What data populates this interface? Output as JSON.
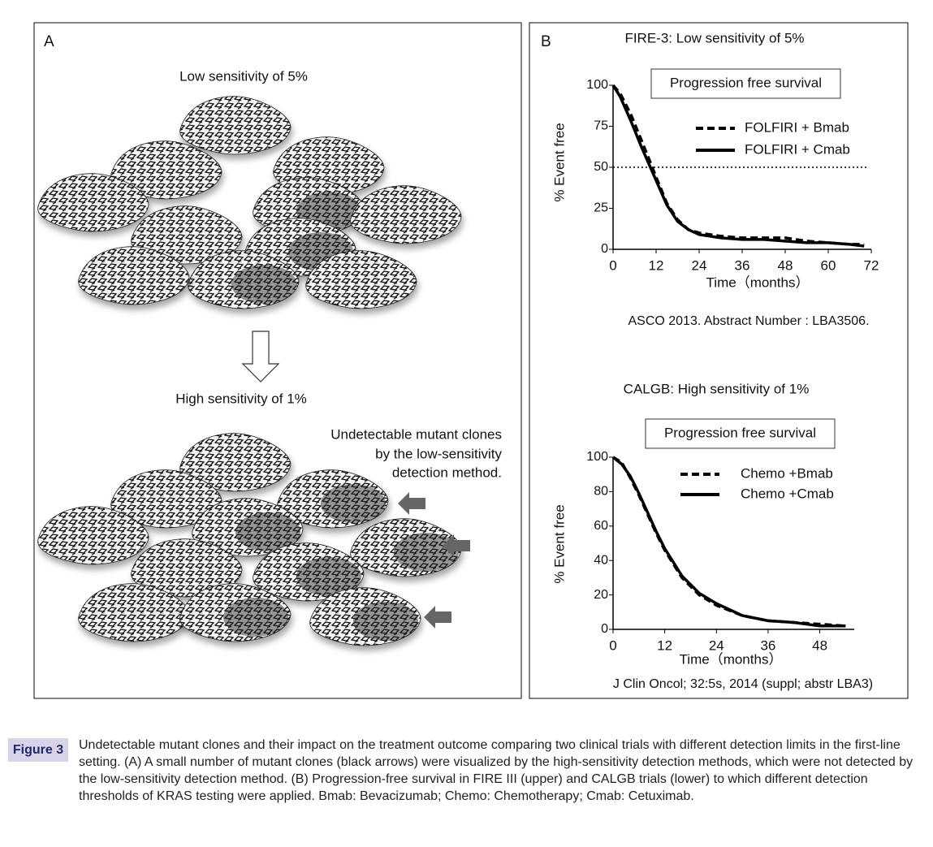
{
  "figure": {
    "panel_a": {
      "label": "A",
      "low_title": "Low sensitivity of 5%",
      "high_title": "High sensitivity of 1%",
      "note": [
        "Undetectable mutant clones",
        "by the low-sensitivity",
        "detection method."
      ]
    },
    "panel_b": {
      "label": "B"
    },
    "caption_label": "Figure 3",
    "caption": "Undetectable mutant clones and their impact on the treatment outcome comparing two clinical trials with different detection limits in the first-line setting. (A) A small number of mutant clones (black arrows) were visualized by the high-sensitivity detection methods, which were not detected by the low-sensitivity detection method. (B) Progression-free survival in FIRE III (upper) and CALGB trials (lower) to which different detection thresholds of KRAS testing were applied. Bmab: Bevacizumab; Chemo: Chemotherapy; Cmab: Cetuximab."
  },
  "chart_data": [
    {
      "type": "line",
      "title": "FIRE-3: Low sensitivity of 5%",
      "subtitle": "Progression free survival",
      "ylabel": "% Event free",
      "xlabel": "Time（months）",
      "source": "ASCO 2013. Abstract Number : LBA3506.",
      "x": [
        0,
        2,
        5,
        8,
        10,
        12,
        15,
        18,
        21,
        24,
        30,
        36,
        42,
        48,
        54,
        60,
        66,
        70
      ],
      "series": [
        {
          "name": "FOLFIRI + Bmab",
          "color": "#000000",
          "style": "dashed",
          "values": [
            100,
            95,
            82,
            66,
            55,
            44,
            28,
            18,
            12,
            10,
            8,
            7,
            7,
            7,
            5,
            4,
            3,
            3
          ]
        },
        {
          "name": "FOLFIRI + Cmab",
          "color": "#000000",
          "style": "solid",
          "values": [
            100,
            93,
            78,
            62,
            52,
            42,
            27,
            17,
            12,
            9,
            7,
            6,
            6,
            5,
            4,
            4,
            3,
            2
          ]
        }
      ],
      "reference_line": 50,
      "xlim": [
        0,
        72
      ],
      "xticks": [
        0,
        12,
        24,
        36,
        48,
        60,
        72
      ],
      "ylim": [
        0,
        100
      ],
      "yticks": [
        0,
        25,
        50,
        75,
        100
      ],
      "legend": "upper right"
    },
    {
      "type": "line",
      "title": "CALGB: High sensitivity of 1%",
      "subtitle": "Progression free survival",
      "ylabel": "% Event free",
      "xlabel": "Time（months）",
      "source": "J Clin Oncol; 32:5s, 2014 (suppl; abstr LBA3)",
      "x": [
        0,
        2,
        4,
        6,
        8,
        10,
        12,
        16,
        20,
        24,
        30,
        36,
        42,
        48,
        54
      ],
      "series": [
        {
          "name": "Chemo +Bmab",
          "color": "#000000",
          "style": "dashed",
          "values": [
            100,
            97,
            88,
            78,
            67,
            56,
            46,
            30,
            20,
            14,
            8,
            5,
            4,
            3,
            2
          ]
        },
        {
          "name": "Chemo +Cmab",
          "color": "#000000",
          "style": "solid",
          "values": [
            100,
            96,
            89,
            79,
            68,
            57,
            47,
            31,
            21,
            15,
            8,
            5,
            4,
            2,
            2
          ]
        }
      ],
      "xlim": [
        0,
        56
      ],
      "xticks": [
        0,
        12,
        24,
        36,
        48
      ],
      "ylim": [
        0,
        100
      ],
      "yticks": [
        0,
        20,
        40,
        60,
        80,
        100
      ],
      "legend": "upper right"
    }
  ]
}
